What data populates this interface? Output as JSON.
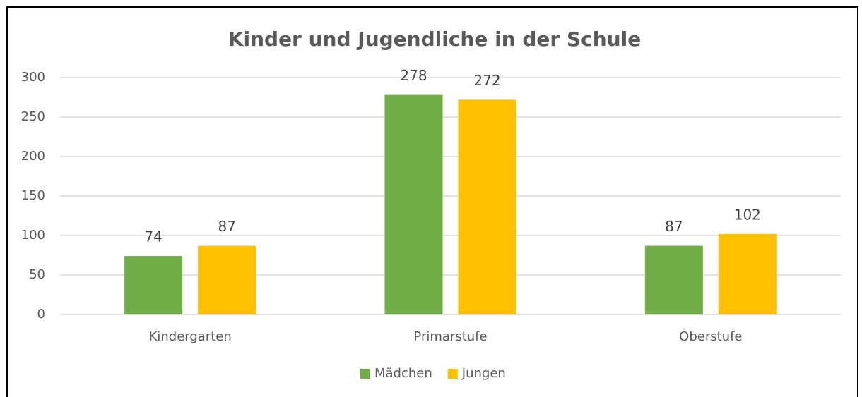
{
  "chart_data": {
    "type": "bar",
    "title": "Kinder und Jugendliche in der Schule",
    "categories": [
      "Kindergarten",
      "Primarstufe",
      "Oberstufe"
    ],
    "series": [
      {
        "name": "Mädchen",
        "color": "#70ad47",
        "values": [
          74,
          278,
          87
        ]
      },
      {
        "name": "Jungen",
        "color": "#ffc000",
        "values": [
          87,
          272,
          102
        ]
      }
    ],
    "ylim": [
      0,
      300
    ],
    "yticks": [
      0,
      50,
      100,
      150,
      200,
      250,
      300
    ],
    "grid": true,
    "legend": "bottom"
  }
}
